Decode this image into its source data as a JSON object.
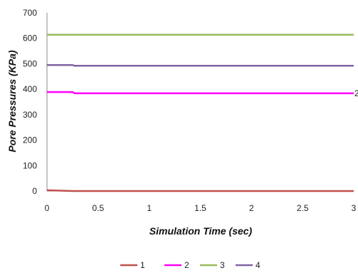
{
  "chart_data": {
    "type": "line",
    "title": "",
    "xlabel": "Simulation Time (sec)",
    "ylabel": "Pore Pressures (KPa)",
    "xlim": [
      0,
      3
    ],
    "ylim": [
      0,
      700
    ],
    "xticks": [
      0,
      0.5,
      1,
      1.5,
      2,
      2.5,
      3
    ],
    "yticks": [
      0,
      100,
      200,
      300,
      400,
      500,
      600,
      700
    ],
    "grid": false,
    "legend_position": "bottom",
    "series": [
      {
        "name": "1",
        "color": "#c0504d",
        "x": [
          0,
          0.25,
          3
        ],
        "y": [
          3,
          0,
          0
        ]
      },
      {
        "name": "2",
        "color": "#ff00ff",
        "x": [
          0,
          0.25,
          0.27,
          3
        ],
        "y": [
          389,
          389,
          384,
          384
        ]
      },
      {
        "name": "3",
        "color": "#9bbb59",
        "x": [
          0,
          3
        ],
        "y": [
          614,
          614
        ]
      },
      {
        "name": "4",
        "color": "#8064a2",
        "x": [
          0,
          0.25,
          0.27,
          3
        ],
        "y": [
          495,
          495,
          492,
          492
        ]
      }
    ],
    "end_labels": [
      "2"
    ]
  }
}
